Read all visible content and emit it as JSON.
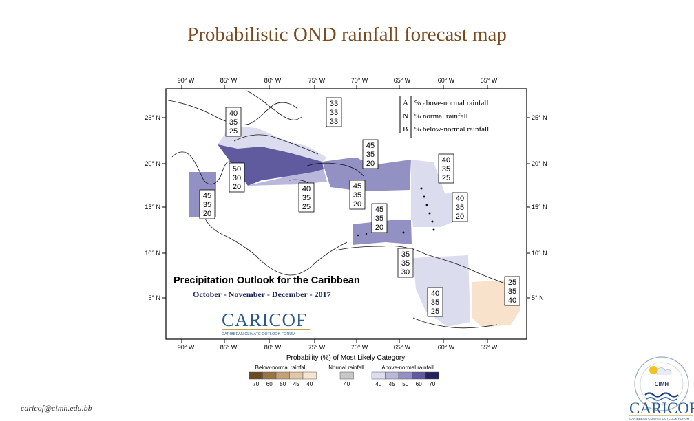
{
  "title": "Probabilistic OND rainfall forecast map",
  "map": {
    "lon_ticks": [
      "90° W",
      "85° W",
      "80° W",
      "75° W",
      "70° W",
      "65° W",
      "60° W",
      "55° W"
    ],
    "lat_ticks": [
      "25° N",
      "20° N",
      "15° N",
      "10° N",
      "5° N"
    ],
    "heading": "Precipitation Outlook for the Caribbean",
    "period": "October - November - December - 2017",
    "key": {
      "rows": [
        {
          "letter": "A",
          "text": "% above-normal rainfall"
        },
        {
          "letter": "N",
          "text": "% normal rainfall"
        },
        {
          "letter": "B",
          "text": "% below-normal rainfall"
        }
      ]
    },
    "region_labels": [
      {
        "a": "40",
        "n": "35",
        "b": "25"
      },
      {
        "a": "33",
        "n": "33",
        "b": "33"
      },
      {
        "a": "45",
        "n": "35",
        "b": "20"
      },
      {
        "a": "50",
        "n": "30",
        "b": "20"
      },
      {
        "a": "40",
        "n": "35",
        "b": "25"
      },
      {
        "a": "45",
        "n": "35",
        "b": "20"
      },
      {
        "a": "40",
        "n": "35",
        "b": "25"
      },
      {
        "a": "45",
        "n": "35",
        "b": "20"
      },
      {
        "a": "45",
        "n": "35",
        "b": "20"
      },
      {
        "a": "40",
        "n": "35",
        "b": "20"
      },
      {
        "a": "35",
        "n": "35",
        "b": "30"
      },
      {
        "a": "40",
        "n": "35",
        "b": "25"
      },
      {
        "a": "25",
        "n": "35",
        "b": "40"
      }
    ],
    "logo_text": "CARICOF",
    "logo_subtitle": "CARIBBEAN CLIMATE OUTLOOK FORUM"
  },
  "legend": {
    "title": "Probability (%) of Most Likely Category",
    "groups": [
      {
        "label": "Below-normal rainfall",
        "ticks": [
          "70",
          "60",
          "50",
          "45",
          "40"
        ],
        "colors": [
          "#6b4a22",
          "#9b7446",
          "#c6a079",
          "#e2c6a6",
          "#f6e4cf"
        ]
      },
      {
        "label": "Normal rainfall",
        "ticks": [
          "40"
        ],
        "colors": [
          "#c8c8c8"
        ]
      },
      {
        "label": "Above-normal rainfall",
        "ticks": [
          "40",
          "45",
          "50",
          "60",
          "70"
        ],
        "colors": [
          "#dcdcef",
          "#b9b8dc",
          "#9391c3",
          "#5f5b9e",
          "#25205e"
        ]
      }
    ]
  },
  "cimh": {
    "label": "CIMH"
  },
  "footer": {
    "email": "caricof@cimh.edu.bb",
    "logo_text": "CARICOF",
    "logo_subtitle": "CARIBBEAN CLIMATE OUTLOOK FORUM"
  }
}
